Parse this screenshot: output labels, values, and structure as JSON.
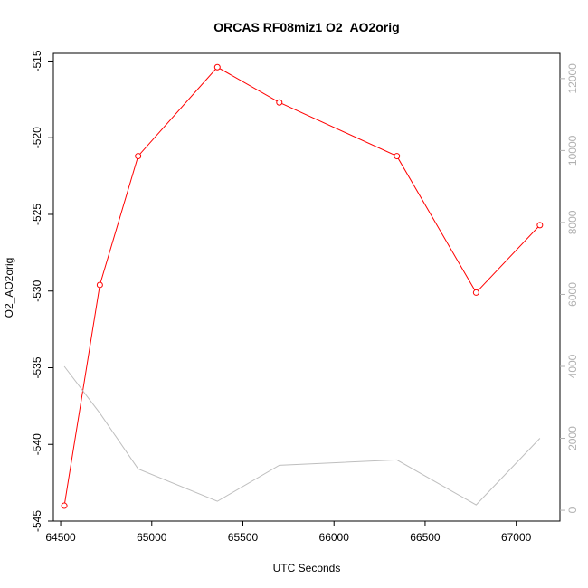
{
  "chart_data": {
    "type": "line",
    "title": "ORCAS RF08miz1 O2_AO2orig",
    "xlabel": "UTC Seconds",
    "ylabel": "O2_AO2orig",
    "xlim": [
      64460,
      67240
    ],
    "ylim": [
      -545,
      -514.5
    ],
    "ylim_right": [
      -300,
      12700
    ],
    "x_ticks": [
      "64500",
      "65000",
      "65500",
      "66000",
      "66500",
      "67000"
    ],
    "y_ticks": [
      "-545",
      "-540",
      "-535",
      "-530",
      "-525",
      "-520",
      "-515"
    ],
    "y_ticks_right": [
      "0",
      "2000",
      "4000",
      "6000",
      "8000",
      "10000",
      "12000"
    ],
    "series": [
      {
        "axis": "left",
        "color": "#ff0000",
        "markers": true,
        "x": [
          64520,
          64715,
          64925,
          65360,
          65700,
          66345,
          66780,
          67130
        ],
        "y": [
          -544.0,
          -529.6,
          -521.2,
          -515.4,
          -517.7,
          -521.2,
          -530.1,
          -525.7
        ]
      },
      {
        "axis": "right",
        "color": "#bebebe",
        "markers": false,
        "x": [
          64520,
          64715,
          64925,
          65360,
          65700,
          66345,
          66780,
          67130
        ],
        "y": [
          4000,
          2700,
          1150,
          250,
          1250,
          1400,
          150,
          2000
        ]
      }
    ]
  }
}
